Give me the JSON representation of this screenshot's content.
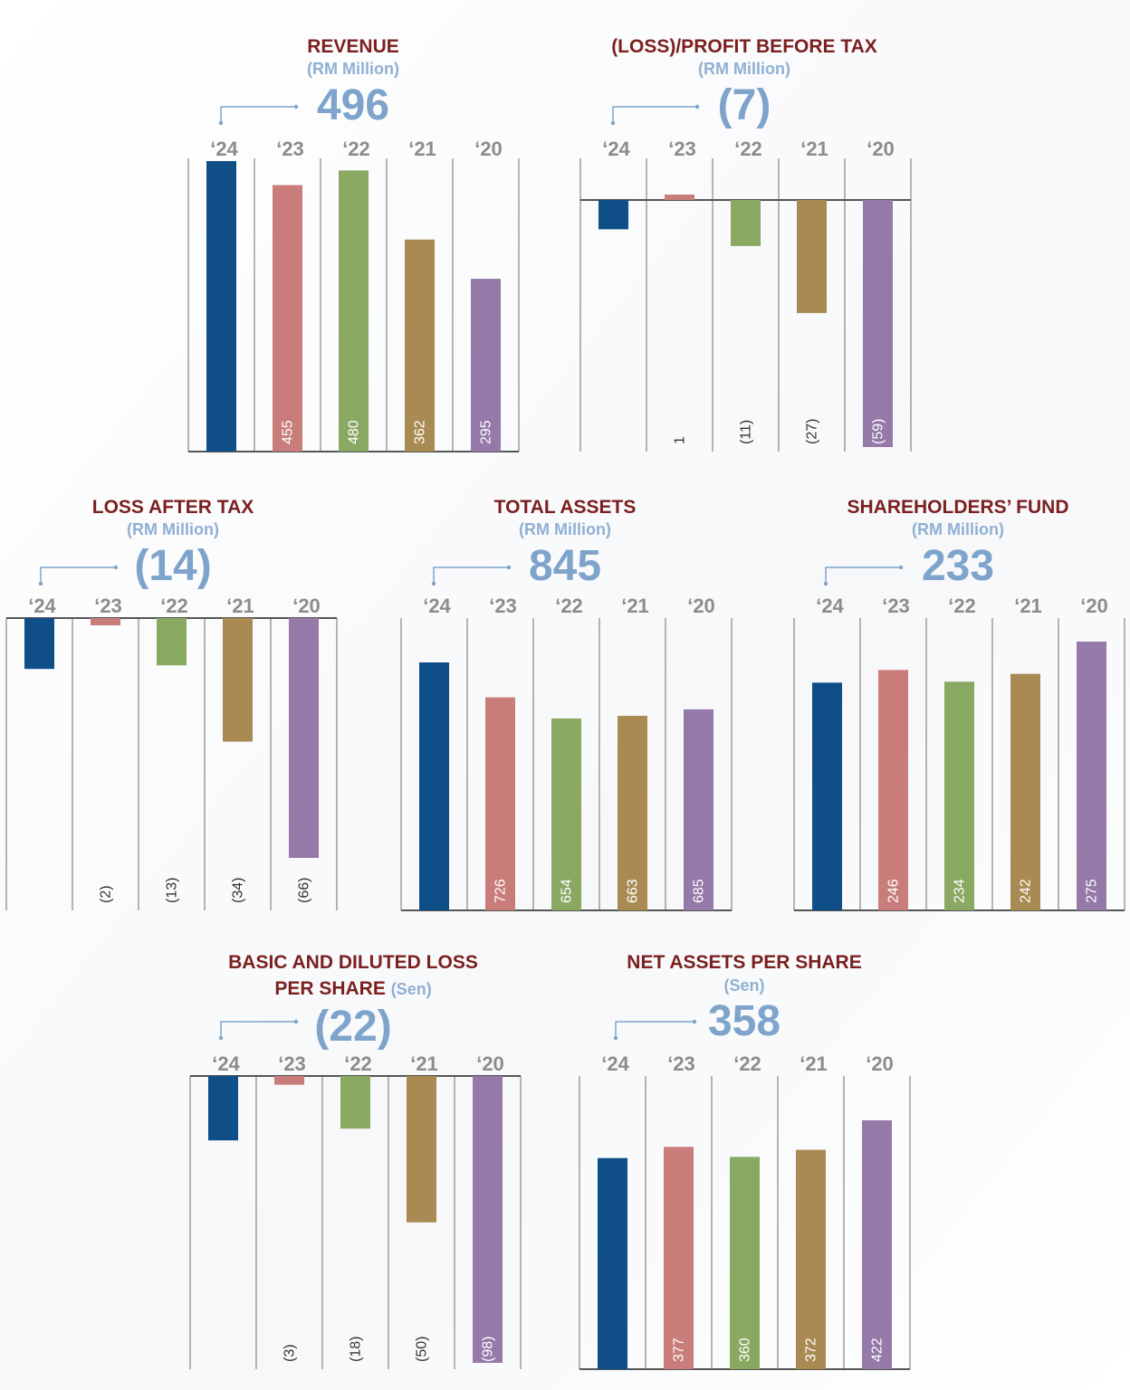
{
  "colors": {
    "title": "#7b1f1f",
    "accent": "#7ea4cb",
    "years": [
      "#0f4e87",
      "#c97d7a",
      "#89a862",
      "#a88a52",
      "#9479a9"
    ]
  },
  "chart_data": [
    {
      "type": "bar",
      "title": "REVENUE",
      "unit": "(RM Million)",
      "headline": "496",
      "categories": [
        "‘24",
        "‘23",
        "‘22",
        "‘21",
        "‘20"
      ],
      "values": [
        496,
        455,
        480,
        362,
        295
      ],
      "value_labels": [
        "",
        "455",
        "480",
        "362",
        "295"
      ],
      "ylim": [
        0,
        496
      ]
    },
    {
      "type": "bar",
      "title": "(LOSS)/PROFIT BEFORE TAX",
      "unit": "(RM Million)",
      "headline": "(7)",
      "categories": [
        "‘24",
        "‘23",
        "‘22",
        "‘21",
        "‘20"
      ],
      "values": [
        -7,
        1,
        -11,
        -27,
        -59
      ],
      "value_labels": [
        "",
        "1",
        "(11)",
        "(27)",
        "(59)"
      ],
      "ylim": [
        -59,
        1
      ]
    },
    {
      "type": "bar",
      "title": "LOSS AFTER TAX",
      "unit": "(RM Million)",
      "headline": "(14)",
      "categories": [
        "‘24",
        "‘23",
        "‘22",
        "‘21",
        "‘20"
      ],
      "values": [
        -14,
        -2,
        -13,
        -34,
        -66
      ],
      "value_labels": [
        "",
        "(2)",
        "(13)",
        "(34)",
        "(66)"
      ],
      "ylim": [
        -66,
        0
      ]
    },
    {
      "type": "bar",
      "title": "TOTAL ASSETS",
      "unit": "(RM Million)",
      "headline": "845",
      "categories": [
        "‘24",
        "‘23",
        "‘22",
        "‘21",
        "‘20"
      ],
      "values": [
        845,
        726,
        654,
        663,
        685
      ],
      "value_labels": [
        "",
        "726",
        "654",
        "663",
        "685"
      ],
      "ylim": [
        0,
        845
      ]
    },
    {
      "type": "bar",
      "title": "SHAREHOLDERS’ FUND",
      "unit": "(RM Million)",
      "headline": "233",
      "categories": [
        "‘24",
        "‘23",
        "‘22",
        "‘21",
        "‘20"
      ],
      "values": [
        233,
        246,
        234,
        242,
        275
      ],
      "value_labels": [
        "",
        "246",
        "234",
        "242",
        "275"
      ],
      "ylim": [
        0,
        275
      ]
    },
    {
      "type": "bar",
      "title": "BASIC AND DILUTED LOSS",
      "title_line2": "PER SHARE",
      "unit": "(Sen)",
      "headline": "(22)",
      "categories": [
        "‘24",
        "‘23",
        "‘22",
        "‘21",
        "‘20"
      ],
      "values": [
        -22,
        -3,
        -18,
        -50,
        -98
      ],
      "value_labels": [
        "",
        "(3)",
        "(18)",
        "(50)",
        "(98)"
      ],
      "ylim": [
        -98,
        0
      ]
    },
    {
      "type": "bar",
      "title": "NET ASSETS PER SHARE",
      "unit": "(Sen)",
      "headline": "358",
      "categories": [
        "‘24",
        "‘23",
        "‘22",
        "‘21",
        "‘20"
      ],
      "values": [
        358,
        377,
        360,
        372,
        422
      ],
      "value_labels": [
        "",
        "377",
        "360",
        "372",
        "422"
      ],
      "ylim": [
        0,
        422
      ]
    }
  ]
}
